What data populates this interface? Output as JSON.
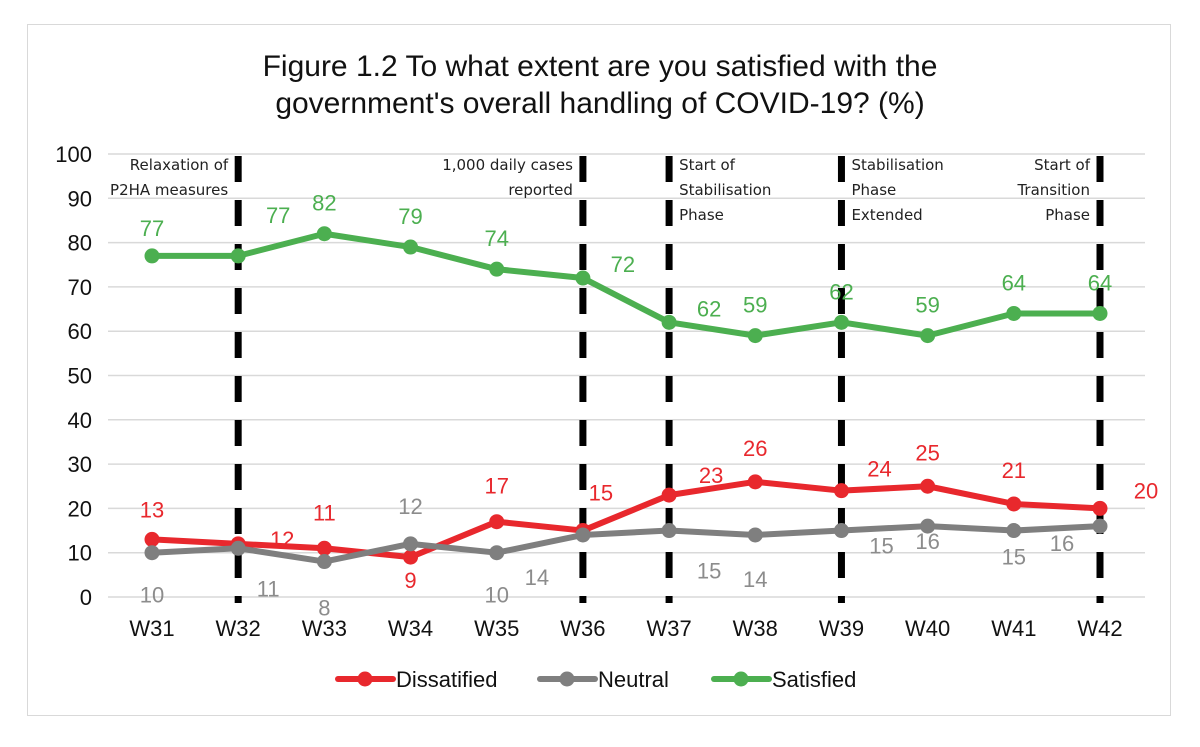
{
  "chart_data": {
    "type": "line",
    "title_line1": "Figure 1.2 To what extent are you satisfied with the",
    "title_line2": "government's overall handling of COVID-19? (%)",
    "xlabel": "",
    "ylabel": "",
    "ylim": [
      0,
      100
    ],
    "yticks": [
      0,
      10,
      20,
      30,
      40,
      50,
      60,
      70,
      80,
      90,
      100
    ],
    "grid": true,
    "legend_position": "bottom",
    "categories": [
      "W31",
      "W32",
      "W33",
      "W34",
      "W35",
      "W36",
      "W37",
      "W38",
      "W39",
      "W40",
      "W41",
      "W42"
    ],
    "series": [
      {
        "name": "Dissatified",
        "color": "#e8282d",
        "values": [
          13,
          12,
          11,
          9,
          17,
          15,
          23,
          26,
          24,
          25,
          21,
          20
        ]
      },
      {
        "name": "Neutral",
        "color": "#7f7f7f",
        "values": [
          10,
          11,
          8,
          12,
          10,
          14,
          15,
          14,
          15,
          16,
          15,
          16
        ]
      },
      {
        "name": "Satisfied",
        "color": "#4caf50",
        "values": [
          77,
          77,
          82,
          79,
          74,
          72,
          62,
          59,
          62,
          59,
          64,
          64
        ]
      }
    ],
    "label_color_neutral": "#8c8c8c",
    "annotations": [
      {
        "at": "W32",
        "lines": [
          "Relaxation of",
          "P2HA measures"
        ],
        "align": "right"
      },
      {
        "at": "W36",
        "lines": [
          "1,000 daily cases",
          "reported"
        ],
        "align": "right"
      },
      {
        "at": "W37",
        "lines": [
          "Start of",
          "Stabilisation",
          "Phase"
        ],
        "align": "left"
      },
      {
        "at": "W39",
        "lines": [
          "Stabilisation",
          "Phase",
          "Extended"
        ],
        "align": "left"
      },
      {
        "at": "W42",
        "lines": [
          "Start of",
          "Transition",
          "Phase"
        ],
        "align": "right"
      }
    ]
  }
}
